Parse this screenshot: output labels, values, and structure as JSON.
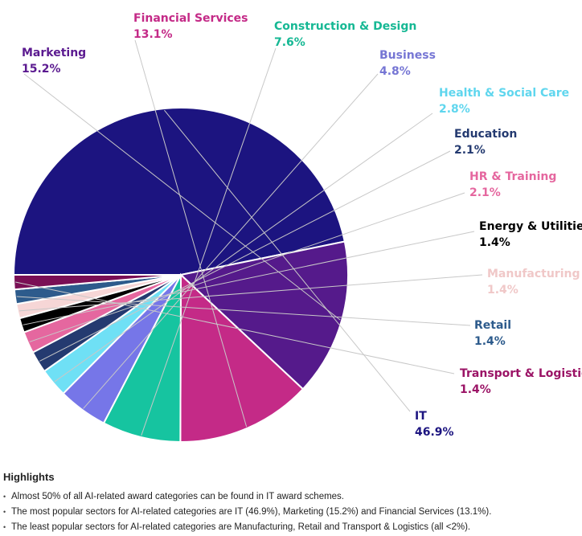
{
  "chart_data": {
    "type": "pie",
    "start_angle": 180,
    "direction": "clockwise",
    "slices": [
      {
        "name": "IT",
        "value": 46.9,
        "label": "46.9%",
        "color": "#1c1480",
        "label_color": "#1c1480",
        "pct_color": "#1c1480"
      },
      {
        "name": "Marketing",
        "value": 15.2,
        "label": "15.2%",
        "color": "#551a8b",
        "label_color": "#5b1a90",
        "pct_color": "#5b1a90"
      },
      {
        "name": "Financial Services",
        "value": 13.1,
        "label": "13.1%",
        "color": "#c42a87",
        "label_color": "#c42a87",
        "pct_color": "#c42a87"
      },
      {
        "name": "Construction & Design",
        "value": 7.6,
        "label": "7.6%",
        "color": "#16c4a0",
        "label_color": "#16b894",
        "pct_color": "#16b894"
      },
      {
        "name": "Business",
        "value": 4.8,
        "label": "4.8%",
        "color": "#7676e8",
        "label_color": "#7676d4",
        "pct_color": "#7676d4"
      },
      {
        "name": "Health & Social Care",
        "value": 2.8,
        "label": "2.8%",
        "color": "#6fe0f5",
        "label_color": "#5fd6ee",
        "pct_color": "#5fd6ee"
      },
      {
        "name": "Education",
        "value": 2.1,
        "label": "2.1%",
        "color": "#243a70",
        "label_color": "#243a70",
        "pct_color": "#243a70"
      },
      {
        "name": "HR & Training",
        "value": 2.1,
        "label": "2.1%",
        "color": "#e5679f",
        "label_color": "#e5679f",
        "pct_color": "#e5679f"
      },
      {
        "name": "Energy & Utilities",
        "value": 1.4,
        "label": "1.4%",
        "color": "#000000",
        "label_color": "#000000",
        "pct_color": "#000000"
      },
      {
        "name": "Manufacturing",
        "value": 1.4,
        "label": "1.4%",
        "color": "#f6d6d6",
        "label_color": "#f0c8c8",
        "pct_color": "#f0c8c8"
      },
      {
        "name": "Retail",
        "value": 1.4,
        "label": "1.4%",
        "color": "#2d5b8c",
        "label_color": "#2d5b8c",
        "pct_color": "#2d5b8c"
      },
      {
        "name": "Transport & Logistics",
        "value": 1.4,
        "label": "1.4%",
        "color": "#7a0f55",
        "label_color": "#9b1466",
        "pct_color": "#9b1466"
      }
    ]
  },
  "highlights": {
    "title": "Highlights",
    "bullets": [
      "Almost 50% of all AI-related award categories can be found in IT award schemes.",
      "The most popular sectors for AI-related categories are IT (46.9%), Marketing (15.2%) and Financial Services (13.1%).",
      "The least popular sectors for AI-related categories are Manufacturing, Retail and Transport & Logistics (all <2%)."
    ]
  }
}
